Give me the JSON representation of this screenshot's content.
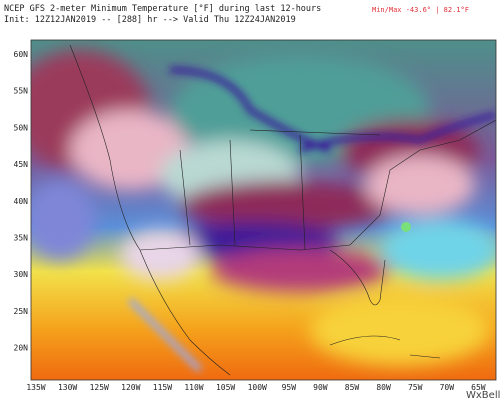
{
  "header": {
    "title": "NCEP GFS 2-meter Minimum Temperature [°F] during last 12-hours",
    "subtitle": "Init: 12Z12JAN2019 -- [288] hr --> Valid Thu 12Z24JAN2019",
    "minmax": "Min/Max -43.6° | 82.1°F"
  },
  "map": {
    "lat_labels": [
      "60N",
      "55N",
      "50N",
      "45N",
      "40N",
      "35N",
      "30N",
      "25N",
      "20N"
    ],
    "lon_labels": [
      "135W",
      "130W",
      "125W",
      "120W",
      "115W",
      "110W",
      "105W",
      "100W",
      "95W",
      "90W",
      "85W",
      "80W",
      "75W",
      "70W",
      "65W"
    ]
  },
  "logo": "WxBell"
}
